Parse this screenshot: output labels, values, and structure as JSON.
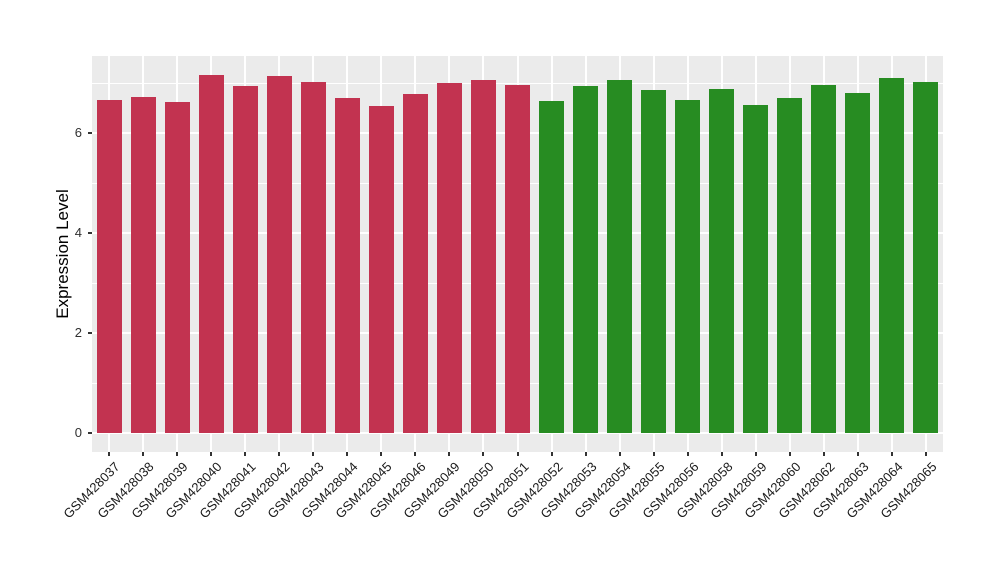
{
  "figure": {
    "background": "#FFFFFF"
  },
  "chart_data": {
    "type": "bar",
    "title": "",
    "xlabel": "",
    "ylabel": "Expression Level",
    "ylim": [
      0,
      7.54
    ],
    "yticks": [
      0,
      2,
      4,
      6
    ],
    "minor_yticks": [
      1,
      3,
      5,
      7
    ],
    "grid": "on",
    "legend": "none",
    "panel_background": "#EBEBEB",
    "grid_color": "#FFFFFF",
    "tick_mark_color": "#333333",
    "axis_text_color": "#303030",
    "groups": {
      "group1": {
        "color": "#C23350"
      },
      "group2": {
        "color": "#278C22"
      }
    },
    "bars": [
      {
        "label": "GSM428037",
        "value": 6.66,
        "group": "group1"
      },
      {
        "label": "GSM428038",
        "value": 6.73,
        "group": "group1"
      },
      {
        "label": "GSM428039",
        "value": 6.62,
        "group": "group1"
      },
      {
        "label": "GSM428040",
        "value": 7.17,
        "group": "group1"
      },
      {
        "label": "GSM428041",
        "value": 6.95,
        "group": "group1"
      },
      {
        "label": "GSM428042",
        "value": 7.15,
        "group": "group1"
      },
      {
        "label": "GSM428043",
        "value": 7.03,
        "group": "group1"
      },
      {
        "label": "GSM428044",
        "value": 6.7,
        "group": "group1"
      },
      {
        "label": "GSM428045",
        "value": 6.55,
        "group": "group1"
      },
      {
        "label": "GSM428046",
        "value": 6.78,
        "group": "group1"
      },
      {
        "label": "GSM428049",
        "value": 7.01,
        "group": "group1"
      },
      {
        "label": "GSM428050",
        "value": 7.06,
        "group": "group1"
      },
      {
        "label": "GSM428051",
        "value": 6.97,
        "group": "group1"
      },
      {
        "label": "GSM428052",
        "value": 6.64,
        "group": "group2"
      },
      {
        "label": "GSM428053",
        "value": 6.95,
        "group": "group2"
      },
      {
        "label": "GSM428054",
        "value": 7.06,
        "group": "group2"
      },
      {
        "label": "GSM428055",
        "value": 6.86,
        "group": "group2"
      },
      {
        "label": "GSM428056",
        "value": 6.66,
        "group": "group2"
      },
      {
        "label": "GSM428058",
        "value": 6.88,
        "group": "group2"
      },
      {
        "label": "GSM428059",
        "value": 6.56,
        "group": "group2"
      },
      {
        "label": "GSM428060",
        "value": 6.71,
        "group": "group2"
      },
      {
        "label": "GSM428062",
        "value": 6.97,
        "group": "group2"
      },
      {
        "label": "GSM428063",
        "value": 6.8,
        "group": "group2"
      },
      {
        "label": "GSM428064",
        "value": 7.11,
        "group": "group2"
      },
      {
        "label": "GSM428065",
        "value": 7.02,
        "group": "group2"
      }
    ]
  }
}
